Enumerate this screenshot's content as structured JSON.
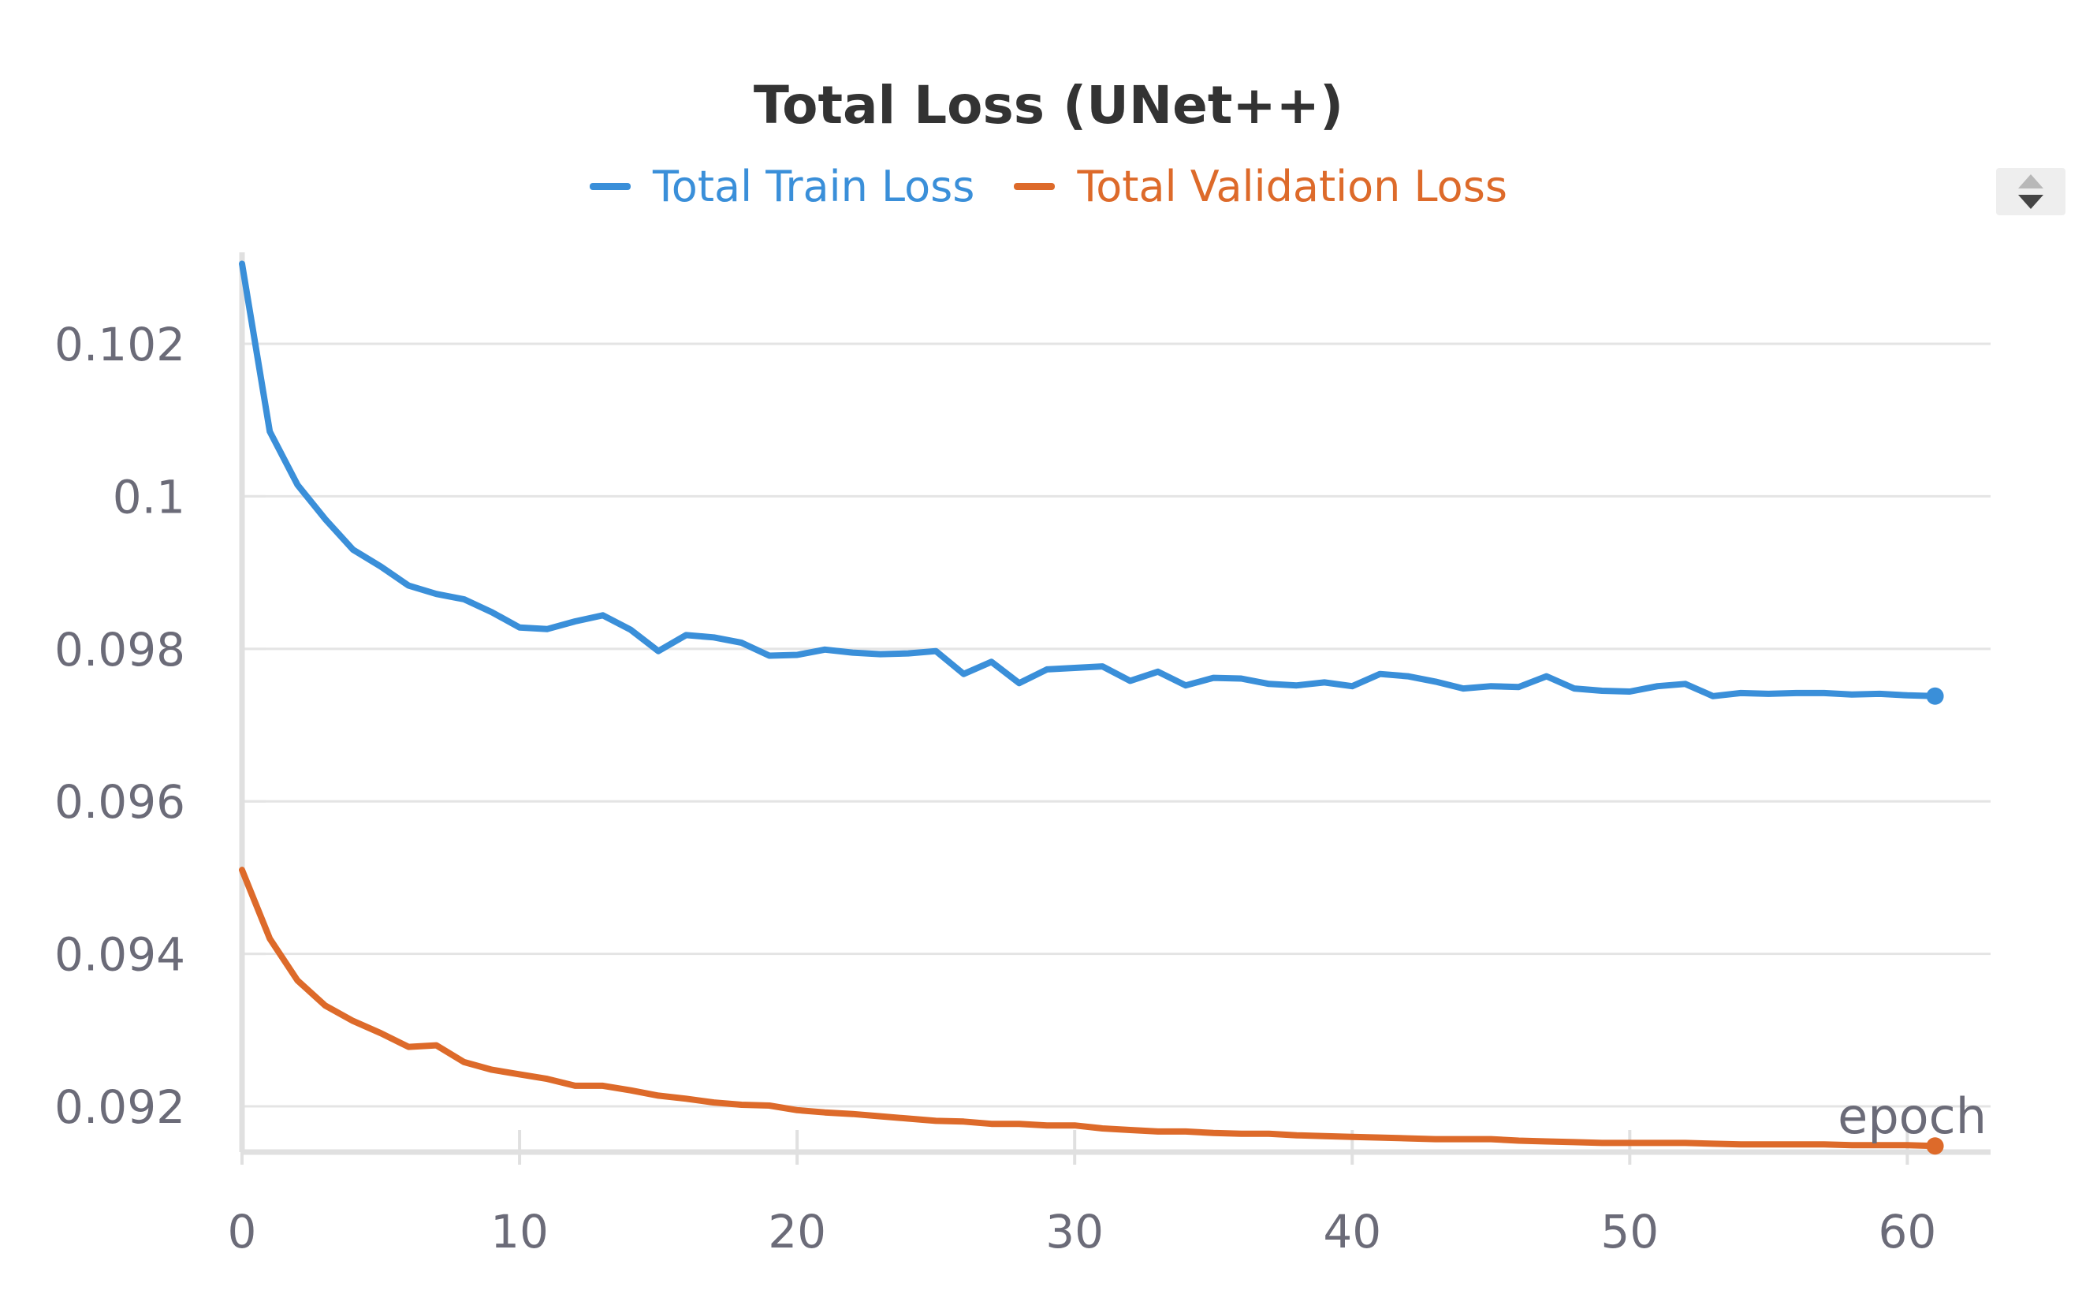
{
  "chart_data": {
    "type": "line",
    "title": "Total Loss (UNet++)",
    "xlabel": "epoch",
    "ylabel": "",
    "xlim": [
      0,
      63
    ],
    "ylim": [
      0.0914,
      0.1032
    ],
    "xticks": [
      "0",
      "10",
      "20",
      "30",
      "40",
      "50",
      "60"
    ],
    "yticks": [
      {
        "value": 0.092,
        "label": "0.092"
      },
      {
        "value": 0.094,
        "label": "0.094"
      },
      {
        "value": 0.096,
        "label": "0.096"
      },
      {
        "value": 0.098,
        "label": "0.098"
      },
      {
        "value": 0.1,
        "label": "0.1"
      },
      {
        "value": 0.102,
        "label": "0.102"
      }
    ],
    "grid": true,
    "legend_position": "top",
    "series": [
      {
        "name": "Total Train Loss",
        "color": "#3a8fd9",
        "values": [
          0.10305,
          0.10085,
          0.10015,
          0.0997,
          0.0993,
          0.09908,
          0.09883,
          0.09872,
          0.09865,
          0.09848,
          0.09828,
          0.09826,
          0.09836,
          0.09844,
          0.09825,
          0.09797,
          0.09818,
          0.09815,
          0.09808,
          0.09791,
          0.09792,
          0.09799,
          0.09795,
          0.09793,
          0.09794,
          0.09797,
          0.09767,
          0.09783,
          0.09755,
          0.09773,
          0.09775,
          0.09777,
          0.09758,
          0.0977,
          0.09752,
          0.09762,
          0.09761,
          0.09754,
          0.09752,
          0.09756,
          0.09751,
          0.09767,
          0.09764,
          0.09757,
          0.09748,
          0.09751,
          0.0975,
          0.09764,
          0.09748,
          0.09745,
          0.09744,
          0.09751,
          0.09754,
          0.09738,
          0.09742,
          0.09741,
          0.09742,
          0.09742,
          0.0974,
          0.09741,
          0.09739,
          0.09738
        ]
      },
      {
        "name": "Total Validation Loss",
        "color": "#dd6a2a",
        "values": [
          0.0951,
          0.0942,
          0.09365,
          0.09332,
          0.09312,
          0.09296,
          0.09278,
          0.0928,
          0.09258,
          0.09248,
          0.09242,
          0.09236,
          0.09227,
          0.09227,
          0.09221,
          0.09214,
          0.0921,
          0.09205,
          0.09202,
          0.09201,
          0.09195,
          0.09192,
          0.0919,
          0.09187,
          0.09184,
          0.09181,
          0.0918,
          0.09177,
          0.09177,
          0.09175,
          0.09175,
          0.09171,
          0.09169,
          0.09167,
          0.09167,
          0.09165,
          0.09164,
          0.09164,
          0.09162,
          0.09161,
          0.0916,
          0.09159,
          0.09158,
          0.09157,
          0.09157,
          0.09157,
          0.09155,
          0.09154,
          0.09153,
          0.09152,
          0.09152,
          0.09152,
          0.09152,
          0.09151,
          0.0915,
          0.0915,
          0.0915,
          0.0915,
          0.09149,
          0.09149,
          0.09149,
          0.09148
        ]
      }
    ]
  },
  "colors": {
    "title": "#333333",
    "axis_text": "#6b6b78",
    "grid": "#e4e4e4",
    "axis": "#e0e0e0"
  },
  "legend_scroll": {
    "up_icon": "triangle-up",
    "down_icon": "triangle-down"
  }
}
